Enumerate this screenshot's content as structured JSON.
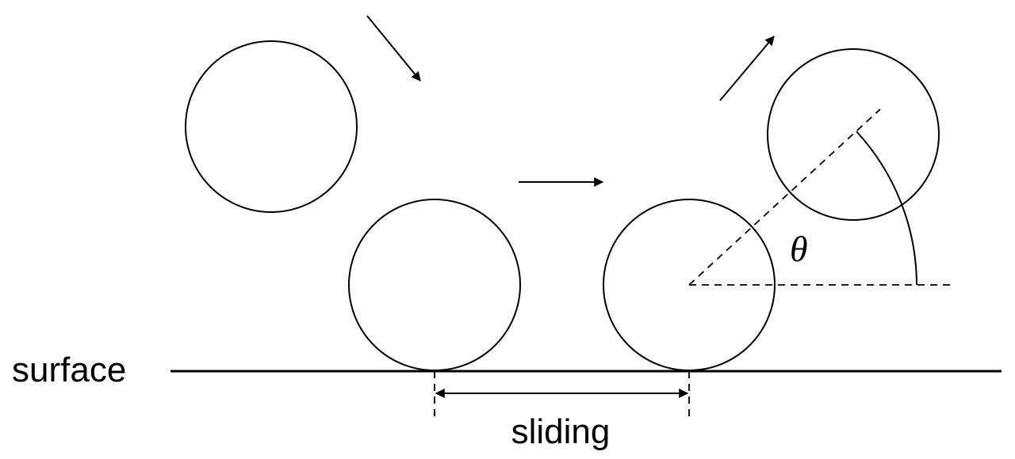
{
  "labels": {
    "surface": "surface",
    "sliding": "sliding",
    "angle": "θ"
  },
  "colors": {
    "line": "#000000",
    "background": "#ffffff"
  }
}
